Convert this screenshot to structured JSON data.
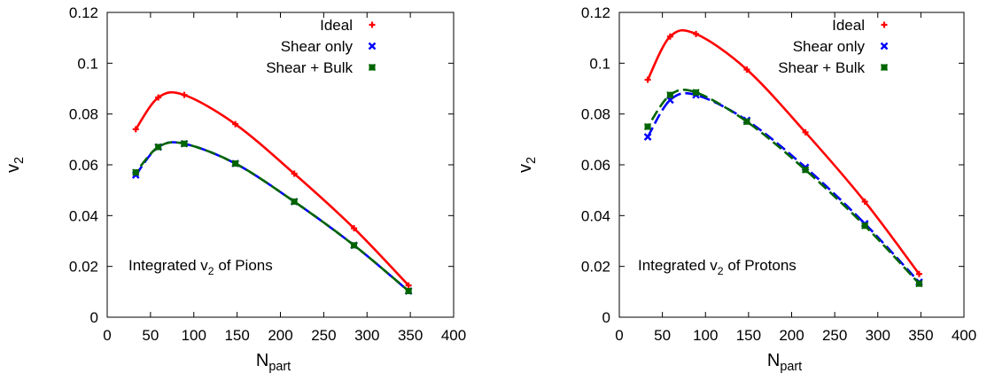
{
  "chart_data": [
    {
      "type": "line",
      "title": "",
      "xlabel": "N",
      "xlabel_sub": "part",
      "ylabel": "v",
      "ylabel_sub": "2",
      "xlim": [
        0,
        400
      ],
      "ylim": [
        0,
        0.12
      ],
      "xticks": [
        "0",
        "50",
        "100",
        "150",
        "200",
        "250",
        "300",
        "350",
        "400"
      ],
      "yticks": [
        "0",
        "0.02",
        "0.04",
        "0.06",
        "0.08",
        "0.1",
        "0.12"
      ],
      "grid": false,
      "legend_position": "top-right",
      "annotation": {
        "pre": "Integrated v",
        "sub": "2",
        "post": " of Pions"
      },
      "x": [
        33,
        59,
        89,
        148,
        216,
        285,
        348
      ],
      "series": [
        {
          "name": "Ideal",
          "color": "#ff0000",
          "marker": "plus",
          "line": "solid",
          "values": [
            0.074,
            0.0865,
            0.0875,
            0.076,
            0.0565,
            0.035,
            0.0125
          ]
        },
        {
          "name": "Shear only",
          "color": "#0000ff",
          "marker": "cross",
          "line": "dashed",
          "values": [
            0.056,
            0.067,
            0.0683,
            0.0605,
            0.0455,
            0.0283,
            0.0103
          ]
        },
        {
          "name": "Shear + Bulk",
          "color": "#006400",
          "marker": "boxcross",
          "line": "dashed",
          "values": [
            0.057,
            0.067,
            0.0683,
            0.0605,
            0.0455,
            0.0283,
            0.0103
          ]
        }
      ]
    },
    {
      "type": "line",
      "title": "",
      "xlabel": "N",
      "xlabel_sub": "part",
      "ylabel": "v",
      "ylabel_sub": "2",
      "xlim": [
        0,
        400
      ],
      "ylim": [
        0,
        0.12
      ],
      "xticks": [
        "0",
        "50",
        "100",
        "150",
        "200",
        "250",
        "300",
        "350",
        "400"
      ],
      "yticks": [
        "0",
        "0.02",
        "0.04",
        "0.06",
        "0.08",
        "0.1",
        "0.12"
      ],
      "grid": false,
      "legend_position": "top-right",
      "annotation": {
        "pre": "Integrated v",
        "sub": "2",
        "post": " of Protons"
      },
      "x": [
        33,
        59,
        89,
        148,
        216,
        285,
        348
      ],
      "series": [
        {
          "name": "Ideal",
          "color": "#ff0000",
          "marker": "plus",
          "line": "solid",
          "values": [
            0.0935,
            0.1105,
            0.1115,
            0.0975,
            0.0728,
            0.0455,
            0.017
          ]
        },
        {
          "name": "Shear only",
          "color": "#0000ff",
          "marker": "cross",
          "line": "dashed",
          "values": [
            0.071,
            0.0855,
            0.0875,
            0.0775,
            0.059,
            0.0368,
            0.0138
          ]
        },
        {
          "name": "Shear + Bulk",
          "color": "#006400",
          "marker": "boxcross",
          "line": "dashed",
          "values": [
            0.075,
            0.0875,
            0.0885,
            0.077,
            0.058,
            0.036,
            0.0132
          ]
        }
      ]
    }
  ]
}
